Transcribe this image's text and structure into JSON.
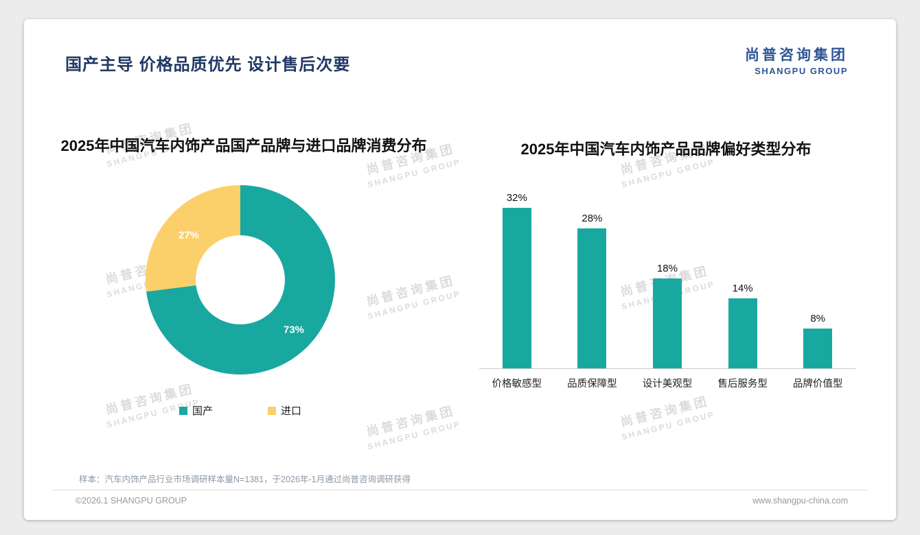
{
  "slide": {
    "title": "国产主导 价格品质优先 设计售后次要",
    "logo_cn": "尚普咨询集团",
    "logo_en": "SHANGPU GROUP",
    "watermark_cn": "尚普咨询集团",
    "watermark_en": "SHANGPU GROUP",
    "footnote": "样本：汽车内饰产品行业市场调研样本量N=1381，于2026年-1月通过尚普咨询调研获得",
    "footer_left": "©2026.1 SHANGPU GROUP",
    "footer_right": "www.shangpu-china.com"
  },
  "colors": {
    "teal": "#18A8A0",
    "yellow": "#FBD06A",
    "title_navy": "#1F3864",
    "logo_blue": "#2E5496"
  },
  "chart_data": [
    {
      "type": "pie",
      "donut": true,
      "title": "2025年中国汽车内饰产品国产品牌与进口品牌消费分布",
      "labels": [
        "国产",
        "进口"
      ],
      "values": [
        73,
        27
      ],
      "data_labels": [
        "73%",
        "27%"
      ],
      "colors": [
        "#18A8A0",
        "#FBD06A"
      ],
      "legend_position": "bottom"
    },
    {
      "type": "bar",
      "title": "2025年中国汽车内饰产品品牌偏好类型分布",
      "categories": [
        "价格敏感型",
        "品质保障型",
        "设计美观型",
        "售后服务型",
        "品牌价值型"
      ],
      "values": [
        32,
        28,
        18,
        14,
        8
      ],
      "data_labels": [
        "32%",
        "28%",
        "18%",
        "14%",
        "8%"
      ],
      "bar_color": "#18A8A0",
      "ylim": [
        0,
        35
      ],
      "grid": false
    }
  ]
}
